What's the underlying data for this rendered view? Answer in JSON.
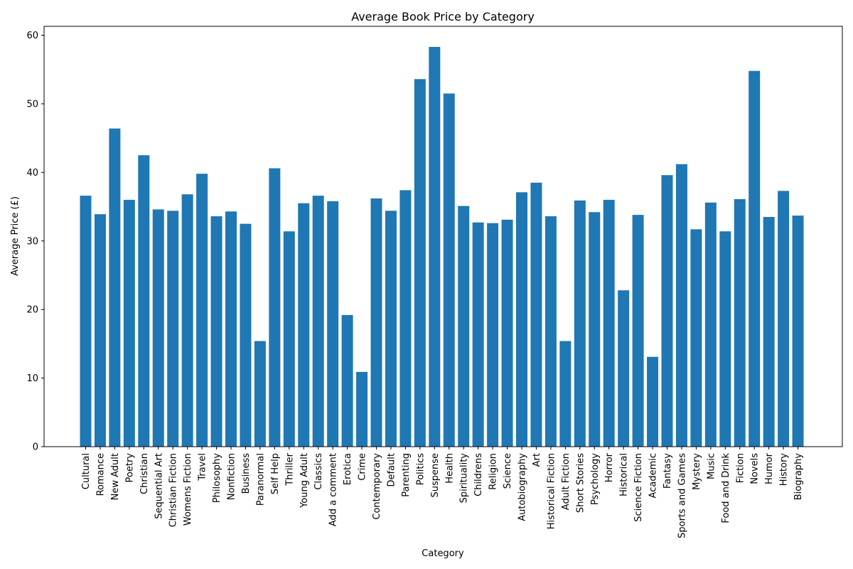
{
  "chart_data": {
    "type": "bar",
    "title": "Average Book Price by Category",
    "xlabel": "Category",
    "ylabel": "Average Price (£)",
    "ylim": [
      0,
      61.3
    ],
    "yticks": [
      0,
      10,
      20,
      30,
      40,
      50,
      60
    ],
    "bar_color": "#1f77b4",
    "grid": false,
    "categories": [
      "Cultural",
      "Romance",
      "New Adult",
      "Poetry",
      "Christian",
      "Sequential Art",
      "Christian Fiction",
      "Womens Fiction",
      "Travel",
      "Philosophy",
      "Nonfiction",
      "Business",
      "Paranormal",
      "Self Help",
      "Thriller",
      "Young Adult",
      "Classics",
      "Add a comment",
      "Erotica",
      "Crime",
      "Contemporary",
      "Default",
      "Parenting",
      "Politics",
      "Suspense",
      "Health",
      "Spirituality",
      "Childrens",
      "Religion",
      "Science",
      "Autobiography",
      "Art",
      "Historical Fiction",
      "Adult Fiction",
      "Short Stories",
      "Psychology",
      "Horror",
      "Historical",
      "Science Fiction",
      "Academic",
      "Fantasy",
      "Sports and Games",
      "Mystery",
      "Music",
      "Food and Drink",
      "Fiction",
      "Novels",
      "Humor",
      "History",
      "Biography"
    ],
    "values": [
      36.6,
      33.9,
      46.4,
      36.0,
      42.5,
      34.6,
      34.4,
      36.8,
      39.8,
      33.6,
      34.3,
      32.5,
      15.4,
      40.6,
      31.4,
      35.5,
      36.6,
      35.8,
      19.2,
      10.9,
      36.2,
      34.4,
      37.4,
      53.6,
      58.3,
      51.5,
      35.1,
      32.7,
      32.6,
      33.1,
      37.1,
      38.5,
      33.6,
      15.4,
      35.9,
      34.2,
      36.0,
      22.8,
      33.8,
      13.1,
      39.6,
      41.2,
      31.7,
      35.6,
      31.4,
      36.1,
      54.8,
      33.5,
      37.3,
      33.7
    ]
  }
}
